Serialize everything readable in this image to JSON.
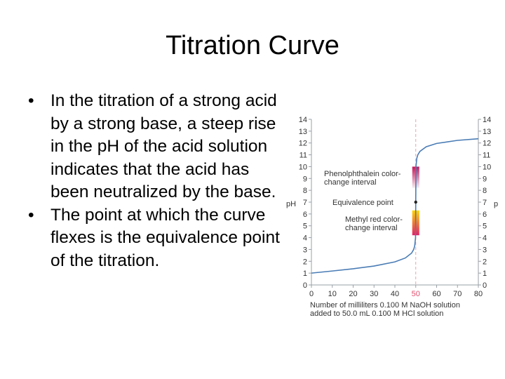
{
  "slide": {
    "title": "Titration Curve",
    "bullet_icon": "•",
    "bullets": [
      "In the titration of a strong acid by a strong base, a steep rise in the pH of the acid solution indicates that the acid has been neutralized by the base.",
      "The point at which the curve flexes is the equivalence point of the titration."
    ]
  },
  "chart_data": {
    "type": "line",
    "title": "",
    "xlabel_line1": "Number of milliliters 0.100 M NaOH solution",
    "xlabel_line2": "added to 50.0 mL 0.100 M HCl solution",
    "ylabel": "pH",
    "xlim": [
      0,
      80
    ],
    "ylim": [
      0,
      14
    ],
    "x_ticks": [
      0,
      10,
      20,
      30,
      40,
      50,
      60,
      70,
      80
    ],
    "y_ticks": [
      0,
      1,
      2,
      3,
      4,
      5,
      6,
      7,
      8,
      9,
      10,
      11,
      12,
      13,
      14
    ],
    "highlight_x_tick": 50,
    "grid": false,
    "line_color": "#4a7cb5",
    "series": [
      {
        "x": [
          0,
          10,
          20,
          30,
          40,
          45,
          48,
          49,
          49.5,
          49.9,
          50,
          50.1,
          50.5,
          51,
          52,
          55,
          60,
          70,
          80
        ],
        "y": [
          1.0,
          1.18,
          1.37,
          1.6,
          1.95,
          2.28,
          2.69,
          3.0,
          3.3,
          4.0,
          7.0,
          10.0,
          10.7,
          11.0,
          11.29,
          11.68,
          11.96,
          12.22,
          12.36
        ]
      }
    ],
    "equivalence_x": 50,
    "equivalence_y": 7,
    "annotations": {
      "phenolphthalein_line1": "Phenolphthalein color-",
      "phenolphthalein_line2": "change interval",
      "equivalence": "Equivalence point",
      "methyl_line1": "Methyl red color-",
      "methyl_line2": "change interval"
    },
    "indicator_ranges": [
      {
        "name": "phenolphthalein",
        "ph": [
          8.2,
          10.0
        ],
        "colors": [
          "#f4eef2",
          "#c2185b"
        ]
      },
      {
        "name": "methyl red",
        "ph": [
          4.2,
          6.3
        ],
        "colors": [
          "#e91e63",
          "#ffd600"
        ]
      }
    ],
    "colors": {
      "axis": "#9aa0a6",
      "dashed_line": "#e8a0b0",
      "highlight_tick": "#e05070"
    }
  }
}
